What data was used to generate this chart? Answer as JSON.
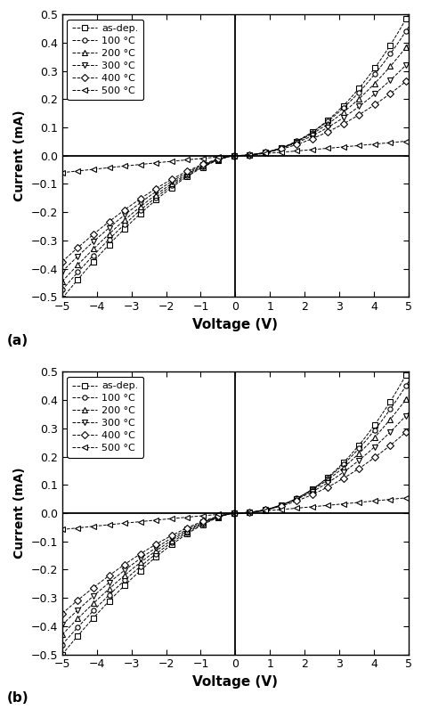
{
  "xlabel": "Voltage (V)",
  "ylabel": "Current (mA)",
  "xlim": [
    -5,
    5
  ],
  "ylim": [
    -0.5,
    0.5
  ],
  "xticks": [
    -5,
    -4,
    -3,
    -2,
    -1,
    0,
    1,
    2,
    3,
    4,
    5
  ],
  "yticks": [
    -0.5,
    -0.4,
    -0.3,
    -0.2,
    -0.1,
    0.0,
    0.1,
    0.2,
    0.3,
    0.4,
    0.5
  ],
  "subplot_labels": [
    "(a)",
    "(b)"
  ],
  "legend_labels": [
    "as-dep.",
    "100 °C",
    "200 °C",
    "300 °C",
    "400 °C",
    "500 °C"
  ],
  "markers": [
    "s",
    "o",
    "^",
    "v",
    "D",
    "<"
  ],
  "figsize": [
    4.74,
    7.97
  ],
  "dpi": 100,
  "curves_a": {
    "pos5": [
      0.5,
      0.455,
      0.395,
      0.33,
      0.27,
      0.052
    ],
    "neg5": [
      -0.505,
      -0.475,
      -0.445,
      -0.41,
      -0.375,
      -0.06
    ],
    "pos_n": [
      2.2,
      2.1,
      2.0,
      1.9,
      1.85,
      1.1
    ],
    "neg_n": [
      1.5,
      1.5,
      1.5,
      1.5,
      1.5,
      1.1
    ]
  },
  "curves_b": {
    "pos5": [
      0.505,
      0.465,
      0.415,
      0.355,
      0.295,
      0.055
    ],
    "neg5": [
      -0.5,
      -0.465,
      -0.43,
      -0.395,
      -0.355,
      -0.058
    ],
    "pos_n": [
      2.2,
      2.1,
      2.0,
      1.9,
      1.85,
      1.1
    ],
    "neg_n": [
      1.5,
      1.5,
      1.5,
      1.5,
      1.5,
      1.1
    ]
  }
}
